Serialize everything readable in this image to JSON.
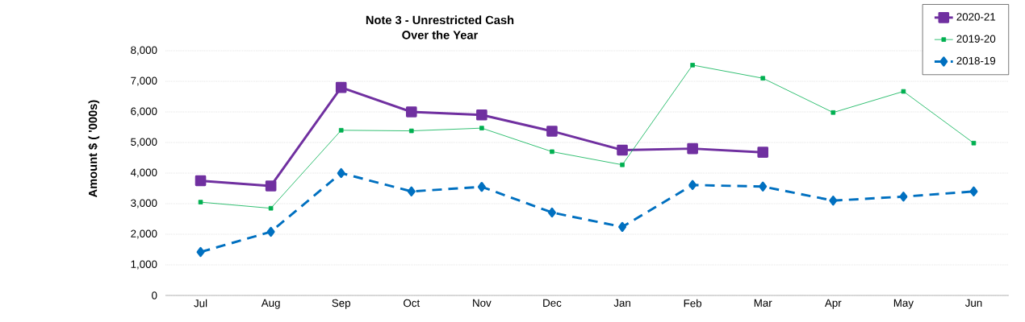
{
  "chart_data": {
    "type": "line",
    "title": "Note 3 - Unrestricted Cash",
    "subtitle": "Over the Year",
    "ylabel": "Amount $ ( '000s)",
    "categories": [
      "Jul",
      "Aug",
      "Sep",
      "Oct",
      "Nov",
      "Dec",
      "Jan",
      "Feb",
      "Mar",
      "Apr",
      "May",
      "Jun"
    ],
    "series": [
      {
        "name": "2020-21",
        "color": "#7030a0",
        "marker": "square",
        "line_style": "solid",
        "values": [
          3750,
          3580,
          6800,
          6000,
          5900,
          5370,
          4750,
          4800,
          4680,
          null,
          null,
          null
        ]
      },
      {
        "name": "2019-20",
        "color": "#00b050",
        "marker": "square",
        "line_style": "solid",
        "values": [
          3050,
          2850,
          5400,
          5380,
          5470,
          4700,
          4270,
          7530,
          7100,
          5980,
          6670,
          4980
        ]
      },
      {
        "name": "2018-19",
        "color": "#0070c0",
        "marker": "diamond",
        "line_style": "dashed",
        "values": [
          1420,
          2080,
          4000,
          3400,
          3550,
          2710,
          2240,
          3610,
          3560,
          3100,
          3230,
          3400
        ]
      }
    ],
    "ylim": [
      0,
      8000
    ],
    "yticks": [
      {
        "value": 0,
        "label": "0"
      },
      {
        "value": 1000,
        "label": "1,000"
      },
      {
        "value": 2000,
        "label": "2,000"
      },
      {
        "value": 3000,
        "label": "3,000"
      },
      {
        "value": 4000,
        "label": "4,000"
      },
      {
        "value": 5000,
        "label": "5,000"
      },
      {
        "value": 6000,
        "label": "6,000"
      },
      {
        "value": 7000,
        "label": "7,000"
      },
      {
        "value": 8000,
        "label": "8,000"
      }
    ],
    "grid": "y",
    "legend": "top right"
  }
}
